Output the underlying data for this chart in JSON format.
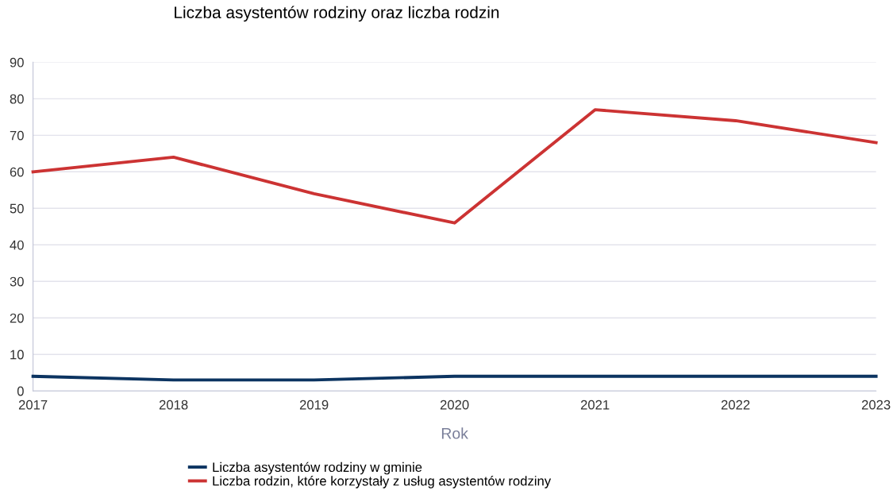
{
  "chart_data": {
    "type": "line",
    "title": "Liczba asystentów rodziny oraz liczba rodzin",
    "xlabel": "Rok",
    "x": [
      2017,
      2018,
      2019,
      2020,
      2021,
      2022,
      2023
    ],
    "series": [
      {
        "name": "Liczba asystentów rodziny w gminie",
        "color": "#0c3461",
        "values": [
          4,
          3,
          3,
          4,
          4,
          4,
          4
        ]
      },
      {
        "name": "Liczba rodzin, które korzystały z usług asystentów rodziny",
        "color": "#cc3333",
        "values": [
          60,
          64,
          54,
          46,
          77,
          74,
          68
        ]
      }
    ],
    "xlim": [
      2017,
      2023
    ],
    "xticks": [
      2017,
      2018,
      2019,
      2020,
      2021,
      2022,
      2023
    ],
    "ylim": [
      0,
      90
    ],
    "yticks": [
      0,
      10,
      20,
      30,
      40,
      50,
      60,
      70,
      80,
      90
    ],
    "grid": "y",
    "legend": "bottom",
    "marker": "none",
    "line_style": "solid"
  }
}
